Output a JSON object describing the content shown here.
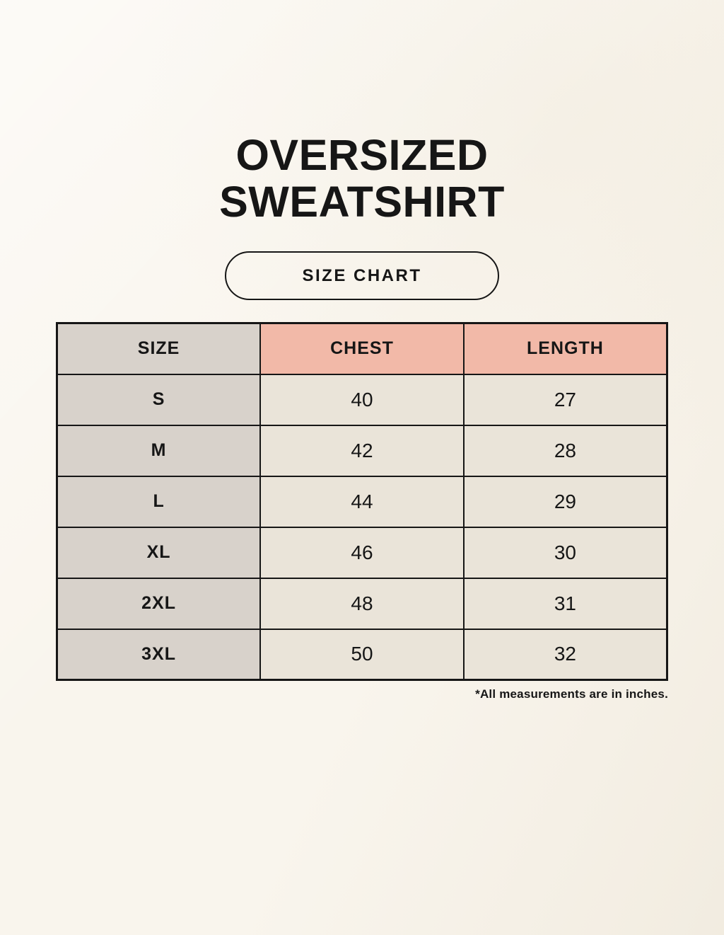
{
  "header": {
    "title_line1": "OVERSIZED",
    "title_line2": "SWEATSHIRT",
    "badge_label": "SIZE CHART"
  },
  "chart_data": {
    "type": "table",
    "title": "OVERSIZED SWEATSHIRT SIZE CHART",
    "columns": [
      "SIZE",
      "CHEST",
      "LENGTH"
    ],
    "rows": [
      {
        "size": "S",
        "chest": 40,
        "length": 27
      },
      {
        "size": "M",
        "chest": 42,
        "length": 28
      },
      {
        "size": "L",
        "chest": 44,
        "length": 29
      },
      {
        "size": "XL",
        "chest": 46,
        "length": 30
      },
      {
        "size": "2XL",
        "chest": 48,
        "length": 31
      },
      {
        "size": "3XL",
        "chest": 50,
        "length": 32
      }
    ],
    "units": "inches",
    "footnote": "*All measurements are in inches."
  },
  "colors": {
    "background": "#f9f5ed",
    "size_column_bg": "#d8d2cb",
    "header_accent_bg": "#f2b9a8",
    "value_cell_bg": "#eae4d9",
    "border": "#161616",
    "text": "#161616"
  }
}
